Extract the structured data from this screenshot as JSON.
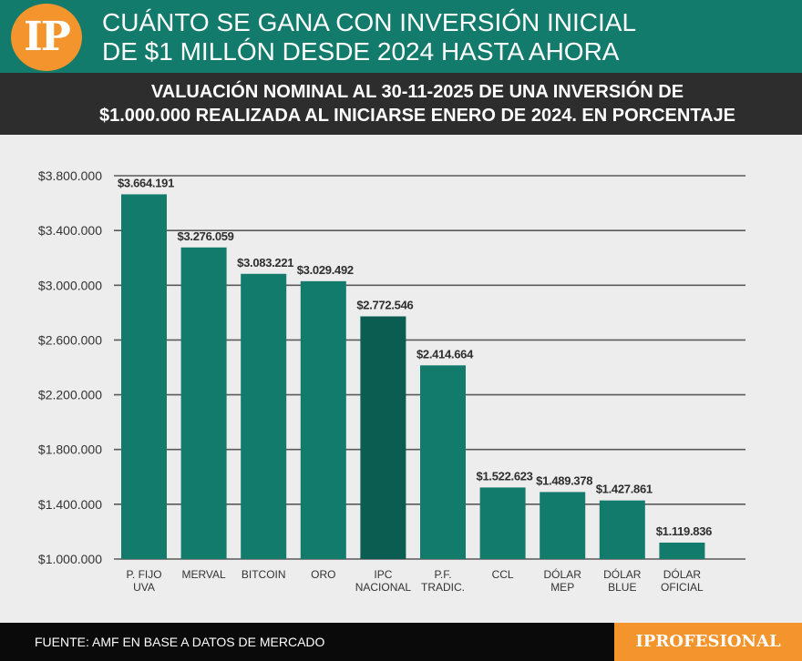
{
  "header": {
    "logo_text": "IP",
    "title_line1": "CUÁNTO SE GANA CON INVERSIÓN INICIAL",
    "title_line2": "DE $1 MILLÓN DESDE 2024 HASTA AHORA"
  },
  "subtitle": {
    "line1": "VALUACIÓN NOMINAL AL 30-11-2025 DE UNA INVERSIÓN DE",
    "line2": "$1.000.000 REALIZADA AL INICIARSE ENERO DE 2024. EN PORCENTAJE"
  },
  "footer": {
    "source": "FUENTE: AMF EN BASE A DATOS DE MERCADO",
    "brand": "IPROFESIONAL"
  },
  "colors": {
    "bar": "#137b6c",
    "bar_highlight": "#0b5d51",
    "grid": "#5a5a5a",
    "accent": "#f3942c"
  },
  "chart_data": {
    "type": "bar",
    "title": "VALUACIÓN NOMINAL AL 30-11-2025 DE UNA INVERSIÓN DE $1.000.000 REALIZADA AL INICIARSE ENERO DE 2024. EN PORCENTAJE",
    "xlabel": "",
    "ylabel": "",
    "ylim": [
      1000000,
      3800000
    ],
    "yticks": [
      1000000,
      1400000,
      1800000,
      2200000,
      2600000,
      3000000,
      3400000,
      3800000
    ],
    "ytick_labels": [
      "$1.000.000",
      "$1.400.000",
      "$1.800.000",
      "$2.200.000",
      "$2.600.000",
      "$3.000.000",
      "$3.400.000",
      "$3.800.000"
    ],
    "grid": true,
    "highlight_index": 4,
    "categories": [
      [
        "P. FIJO",
        "UVA"
      ],
      [
        "MERVAL"
      ],
      [
        "BITCOIN"
      ],
      [
        "ORO"
      ],
      [
        "IPC",
        "NACIONAL"
      ],
      [
        "P.F.",
        "TRADIC."
      ],
      [
        "CCL"
      ],
      [
        "DÓLAR",
        "MEP"
      ],
      [
        "DÓLAR",
        "BLUE"
      ],
      [
        "DÓLAR",
        "OFICIAL"
      ]
    ],
    "values": [
      3664191,
      3276059,
      3083221,
      3029492,
      2772546,
      2414664,
      1522623,
      1489378,
      1427861,
      1119836
    ],
    "value_labels": [
      "$3.664.191",
      "$3.276.059",
      "$3.083.221",
      "$3.029.492",
      "$2.772.546",
      "$2.414.664",
      "$1.522.623",
      "$1.489.378",
      "$1.427.861",
      "$1.119.836"
    ]
  }
}
